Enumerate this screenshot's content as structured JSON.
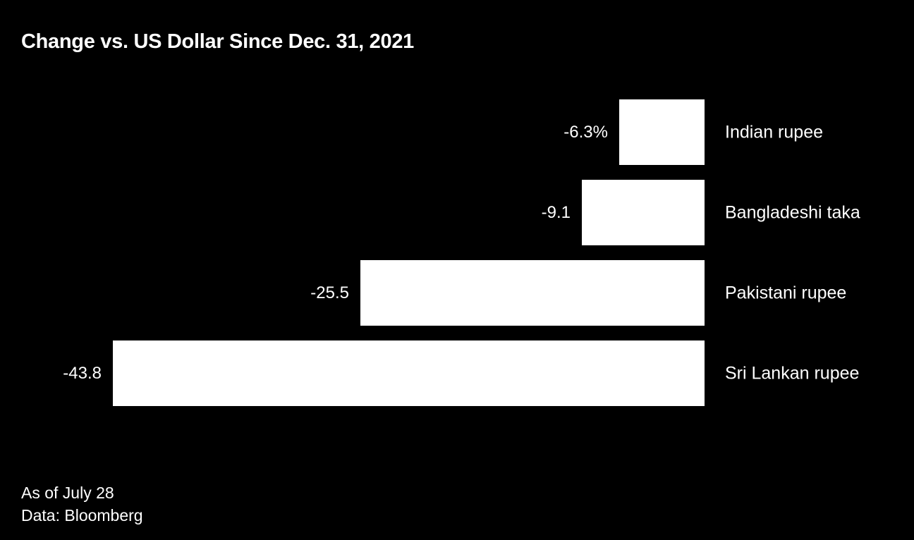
{
  "chart_data": {
    "type": "bar",
    "orientation": "horizontal",
    "title": "Change vs. US Dollar Since Dec. 31, 2021",
    "categories": [
      "Indian rupee",
      "Bangladeshi taka",
      "Pakistani rupee",
      "Sri Lankan rupee"
    ],
    "values": [
      -6.3,
      -9.1,
      -25.5,
      -43.8
    ],
    "value_labels": [
      "-6.3%",
      "-9.1",
      "-25.5",
      "-43.8"
    ],
    "unit": "percent",
    "xlim": [
      -43.8,
      0
    ],
    "grid": false,
    "legend": false,
    "bar_color": "#ffffff",
    "background_color": "#000000",
    "text_color": "#ffffff"
  },
  "footer": {
    "as_of": "As of July 28",
    "source": "Data: Bloomberg"
  }
}
